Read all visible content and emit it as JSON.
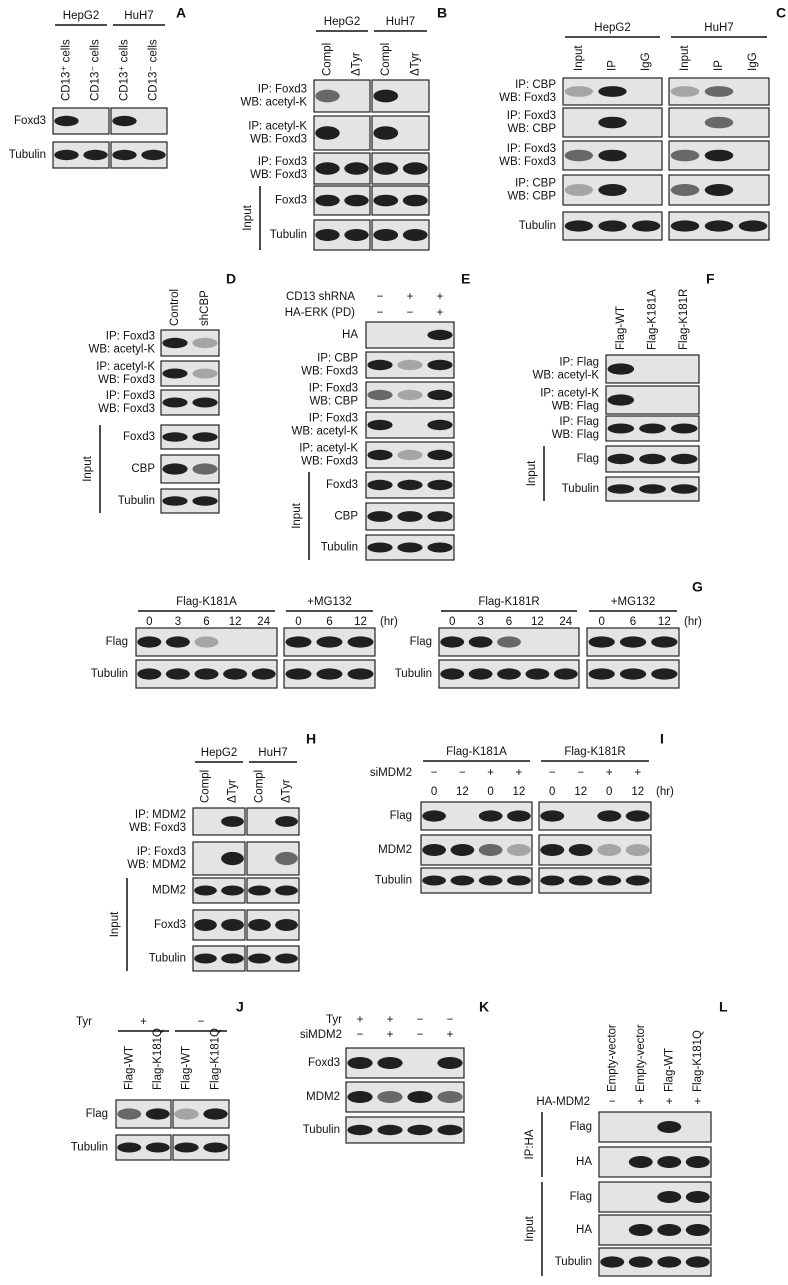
{
  "panels": [
    {
      "letter": "A",
      "blocks": [
        {
          "groups": [
            {
              "label": "HepG2",
              "lanes": [
                "CD13⁺ cells",
                "CD13⁻ cells"
              ]
            },
            {
              "label": "HuH7",
              "lanes": [
                "CD13⁺ cells",
                "CD13⁻ cells"
              ]
            }
          ],
          "sections": [
            {
              "rows": [
                {
                  "lines": [
                    "Foxd3"
                  ]
                },
                {
                  "lines": [
                    "Tubulin"
                  ]
                }
              ]
            }
          ]
        }
      ]
    },
    {
      "letter": "B",
      "blocks": [
        {
          "groups": [
            {
              "label": "HepG2",
              "lanes": [
                "Compl",
                "ΔTyr"
              ]
            },
            {
              "label": "HuH7",
              "lanes": [
                "Compl",
                "ΔTyr"
              ]
            }
          ],
          "sections": [
            {
              "rows": [
                {
                  "lines": [
                    "IP: Foxd3",
                    "WB: acetyl-K"
                  ]
                },
                {
                  "lines": [
                    "IP: acetyl-K",
                    "WB: Foxd3"
                  ]
                },
                {
                  "lines": [
                    "IP: Foxd3",
                    "WB: Foxd3"
                  ]
                }
              ]
            },
            {
              "label": "Input",
              "rows": [
                {
                  "lines": [
                    "Foxd3"
                  ]
                },
                {
                  "lines": [
                    "Tubulin"
                  ]
                }
              ]
            }
          ]
        }
      ]
    },
    {
      "letter": "C",
      "blocks": [
        {
          "groups": [
            {
              "label": "HepG2",
              "lanes": [
                "Input",
                "IP",
                "IgG"
              ]
            },
            {
              "label": "HuH7",
              "lanes": [
                "Input",
                "IP",
                "IgG"
              ]
            }
          ],
          "sections": [
            {
              "rows": [
                {
                  "lines": [
                    "IP: CBP",
                    "WB: Foxd3"
                  ]
                },
                {
                  "lines": [
                    "IP: Foxd3",
                    "WB: CBP"
                  ]
                },
                {
                  "lines": [
                    "IP: Foxd3",
                    "WB: Foxd3"
                  ]
                },
                {
                  "lines": [
                    "IP: CBP",
                    "WB: CBP"
                  ]
                },
                {
                  "lines": [
                    "Tubulin"
                  ]
                }
              ]
            }
          ]
        }
      ]
    },
    {
      "letter": "D",
      "blocks": [
        {
          "groups": [
            {
              "lanes": [
                "Control",
                "shCBP"
              ]
            }
          ],
          "sections": [
            {
              "rows": [
                {
                  "lines": [
                    "IP: Foxd3",
                    "WB: acetyl-K"
                  ]
                },
                {
                  "lines": [
                    "IP: acetyl-K",
                    "WB: Foxd3"
                  ]
                },
                {
                  "lines": [
                    "IP: Foxd3",
                    "WB: Foxd3"
                  ]
                }
              ]
            },
            {
              "label": "Input",
              "rows": [
                {
                  "lines": [
                    "Foxd3"
                  ]
                },
                {
                  "lines": [
                    "CBP"
                  ]
                },
                {
                  "lines": [
                    "Tubulin"
                  ]
                }
              ]
            }
          ]
        }
      ]
    },
    {
      "letter": "E",
      "blocks": [
        {
          "conditions": [
            {
              "label": "CD13 shRNA",
              "values": [
                "−",
                "+",
                "+"
              ]
            },
            {
              "label": "HA-ERK (PD)",
              "values": [
                "−",
                "−",
                "+"
              ]
            }
          ],
          "sections": [
            {
              "rows": [
                {
                  "lines": [
                    "HA"
                  ]
                },
                {
                  "lines": [
                    "IP: CBP",
                    "WB: Foxd3"
                  ]
                },
                {
                  "lines": [
                    "IP: Foxd3",
                    "WB: CBP"
                  ]
                },
                {
                  "lines": [
                    "IP: Foxd3",
                    "WB: acetyl-K"
                  ]
                },
                {
                  "lines": [
                    "IP: acetyl-K",
                    "WB: Foxd3"
                  ]
                }
              ]
            },
            {
              "label": "Input",
              "rows": [
                {
                  "lines": [
                    "Foxd3"
                  ]
                },
                {
                  "lines": [
                    "CBP"
                  ]
                },
                {
                  "lines": [
                    "Tubulin"
                  ]
                }
              ]
            }
          ]
        }
      ]
    },
    {
      "letter": "F",
      "blocks": [
        {
          "groups": [
            {
              "lanes": [
                "Flag-WT",
                "Flag-K181A",
                "Flag-K181R"
              ]
            }
          ],
          "sections": [
            {
              "rows": [
                {
                  "lines": [
                    "IP: Flag",
                    "WB: acetyl-K"
                  ]
                },
                {
                  "lines": [
                    "IP: acetyl-K",
                    "WB: Flag"
                  ]
                },
                {
                  "lines": [
                    "IP: Flag",
                    "WB: Flag"
                  ]
                }
              ]
            },
            {
              "label": "Input",
              "rows": [
                {
                  "lines": [
                    "Flag"
                  ]
                },
                {
                  "lines": [
                    "Tubulin"
                  ]
                }
              ]
            }
          ]
        }
      ]
    },
    {
      "letter": "G",
      "blocks": [
        {
          "groups": [
            {
              "label": "Flag-K181A",
              "lanes": [
                "0",
                "3",
                "6",
                "12",
                "24"
              ]
            },
            {
              "label": "+MG132",
              "lanes": [
                "0",
                "6",
                "12"
              ]
            }
          ],
          "unit": "(hr)",
          "sections": [
            {
              "rows": [
                {
                  "lines": [
                    "Flag"
                  ]
                },
                {
                  "lines": [
                    "Tubulin"
                  ]
                }
              ]
            }
          ]
        },
        {
          "groups": [
            {
              "label": "Flag-K181R",
              "lanes": [
                "0",
                "3",
                "6",
                "12",
                "24"
              ]
            },
            {
              "label": "+MG132",
              "lanes": [
                "0",
                "6",
                "12"
              ]
            }
          ],
          "unit": "(hr)",
          "sections": [
            {
              "rows": [
                {
                  "lines": [
                    "Flag"
                  ]
                },
                {
                  "lines": [
                    "Tubulin"
                  ]
                }
              ]
            }
          ]
        }
      ]
    },
    {
      "letter": "H",
      "blocks": [
        {
          "groups": [
            {
              "label": "HepG2",
              "lanes": [
                "Compl",
                "ΔTyr"
              ]
            },
            {
              "label": "HuH7",
              "lanes": [
                "Compl",
                "ΔTyr"
              ]
            }
          ],
          "sections": [
            {
              "rows": [
                {
                  "lines": [
                    "IP: MDM2",
                    "WB: Foxd3"
                  ]
                },
                {
                  "lines": [
                    "IP: Foxd3",
                    "WB: MDM2"
                  ]
                }
              ]
            },
            {
              "label": "Input",
              "rows": [
                {
                  "lines": [
                    "MDM2"
                  ]
                },
                {
                  "lines": [
                    "Foxd3"
                  ]
                },
                {
                  "lines": [
                    "Tubulin"
                  ]
                }
              ]
            }
          ]
        }
      ]
    },
    {
      "letter": "I",
      "blocks": [
        {
          "groups": [
            {
              "label": "Flag-K181A",
              "lanes": [
                "0",
                "12",
                "0",
                "12"
              ]
            },
            {
              "label": "Flag-K181R",
              "lanes": [
                "0",
                "12",
                "0",
                "12"
              ]
            }
          ],
          "conditions": [
            {
              "label": "siMDM2",
              "values": [
                "−",
                "−",
                "+",
                "+",
                "−",
                "−",
                "+",
                "+"
              ]
            }
          ],
          "unit": "(hr)",
          "sections": [
            {
              "rows": [
                {
                  "lines": [
                    "Flag"
                  ]
                },
                {
                  "lines": [
                    "MDM2"
                  ]
                },
                {
                  "lines": [
                    "Tubulin"
                  ]
                }
              ]
            }
          ]
        }
      ]
    },
    {
      "letter": "J",
      "blocks": [
        {
          "group_title": "Tyr",
          "groups": [
            {
              "label": "+",
              "lanes": [
                "Flag-WT",
                "Flag-K181Q"
              ]
            },
            {
              "label": "−",
              "lanes": [
                "Flag-WT",
                "Flag-K181Q"
              ]
            }
          ],
          "sections": [
            {
              "rows": [
                {
                  "lines": [
                    "Flag"
                  ]
                },
                {
                  "lines": [
                    "Tubulin"
                  ]
                }
              ]
            }
          ]
        }
      ]
    },
    {
      "letter": "K",
      "blocks": [
        {
          "conditions": [
            {
              "label": "Tyr",
              "values": [
                "+",
                "+",
                "−",
                "−"
              ]
            },
            {
              "label": "siMDM2",
              "values": [
                "−",
                "+",
                "−",
                "+"
              ]
            }
          ],
          "sections": [
            {
              "rows": [
                {
                  "lines": [
                    "Foxd3"
                  ]
                },
                {
                  "lines": [
                    "MDM2"
                  ]
                },
                {
                  "lines": [
                    "Tubulin"
                  ]
                }
              ]
            }
          ]
        }
      ]
    },
    {
      "letter": "L",
      "blocks": [
        {
          "groups": [
            {
              "lanes": [
                "Empty-vector",
                "Empty-vector",
                "Flag-WT",
                "Flag-K181Q"
              ]
            }
          ],
          "conditions": [
            {
              "label": "HA-MDM2",
              "values": [
                "−",
                "+",
                "+",
                "+"
              ]
            }
          ],
          "sections": [
            {
              "label": "IP:HA",
              "rows": [
                {
                  "lines": [
                    "Flag"
                  ]
                },
                {
                  "lines": [
                    "HA"
                  ]
                }
              ]
            },
            {
              "label": "Input",
              "rows": [
                {
                  "lines": [
                    "Flag"
                  ]
                },
                {
                  "lines": [
                    "HA"
                  ]
                },
                {
                  "lines": [
                    "Tubulin"
                  ]
                }
              ]
            }
          ]
        }
      ]
    }
  ]
}
